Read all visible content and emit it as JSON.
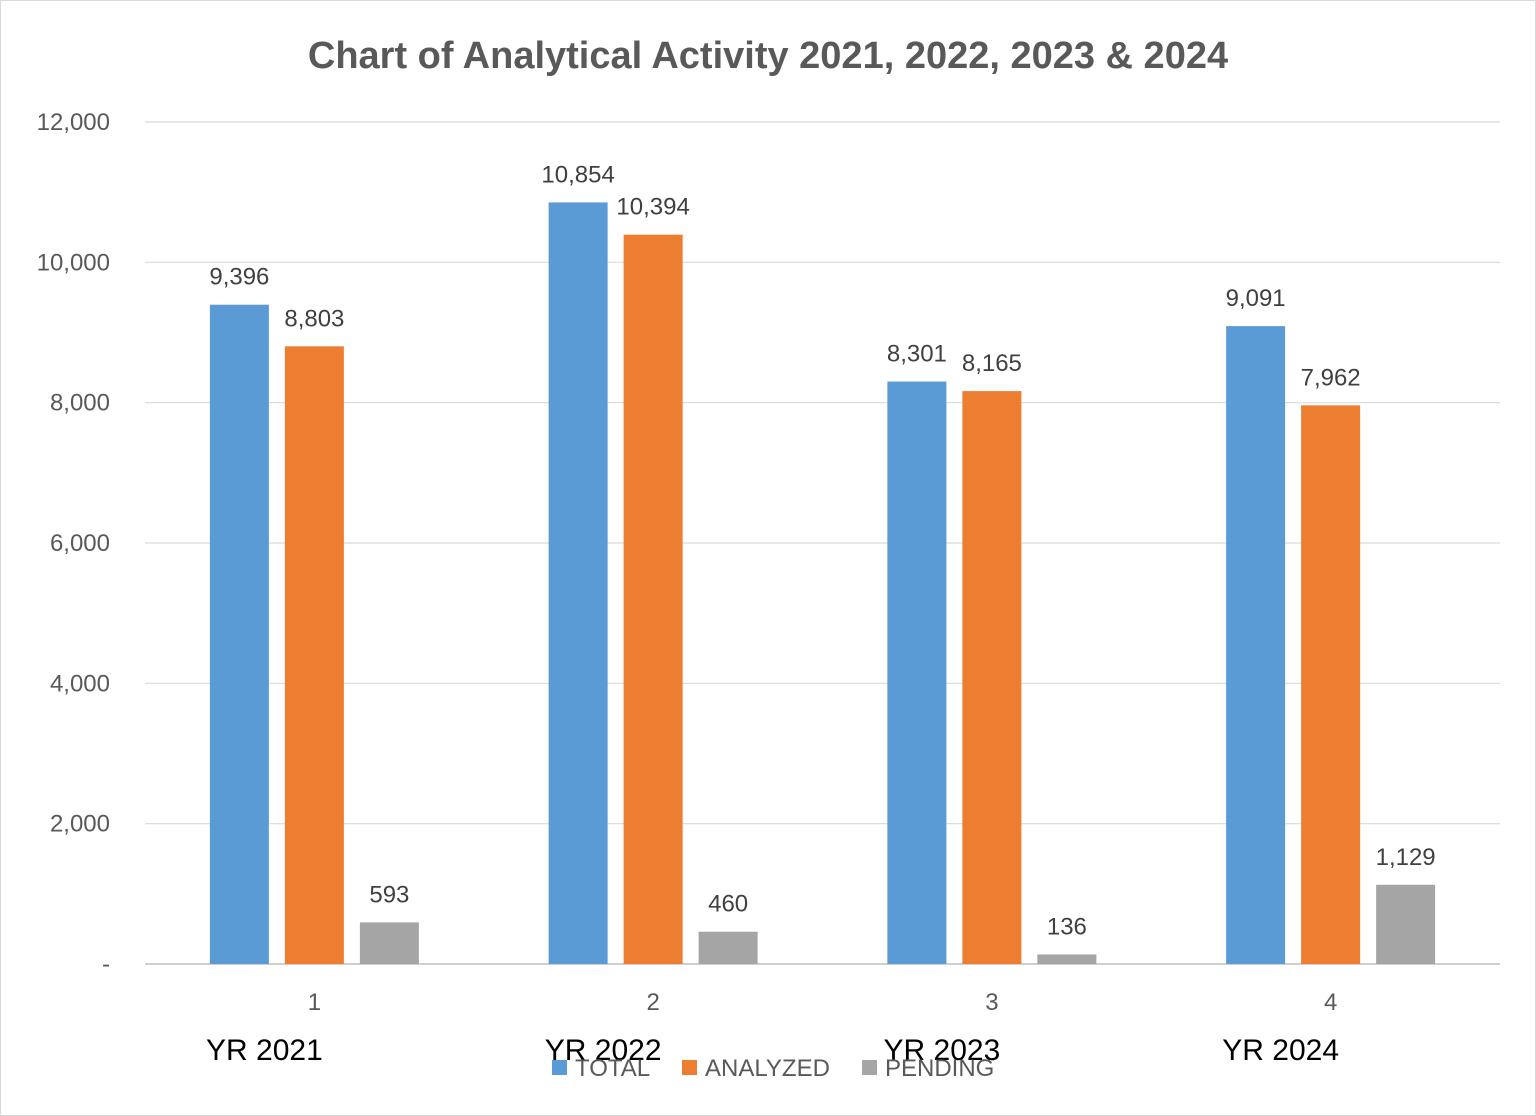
{
  "chart_data": {
    "type": "bar",
    "title": "Chart of Analytical Activity 2021, 2022, 2023 & 2024",
    "categories": [
      "1",
      "2",
      "3",
      "4"
    ],
    "category_annotations": [
      "YR 2021",
      "YR 2022",
      "YR 2023",
      "YR 2024"
    ],
    "series": [
      {
        "name": "TOTAL",
        "color": "#5B9BD5",
        "values": [
          9396,
          10854,
          8301,
          9091
        ],
        "labels": [
          "9,396",
          "10,854",
          "8,301",
          "9,091"
        ]
      },
      {
        "name": "ANALYZED",
        "color": "#ED7D31",
        "values": [
          8803,
          10394,
          8165,
          7962
        ],
        "labels": [
          "8,803",
          "10,394",
          "8,165",
          "7,962"
        ]
      },
      {
        "name": "PENDING",
        "color": "#A5A5A5",
        "values": [
          593,
          460,
          136,
          1129
        ],
        "labels": [
          "593",
          "460",
          "136",
          "1,129"
        ]
      }
    ],
    "ylim": [
      0,
      12000
    ],
    "yticks": [
      0,
      2000,
      4000,
      6000,
      8000,
      10000,
      12000
    ],
    "ytick_labels": [
      "-",
      "2,000",
      "4,000",
      "6,000",
      "8,000",
      "10,000",
      "12,000"
    ],
    "grid": true,
    "legend_position": "bottom"
  }
}
